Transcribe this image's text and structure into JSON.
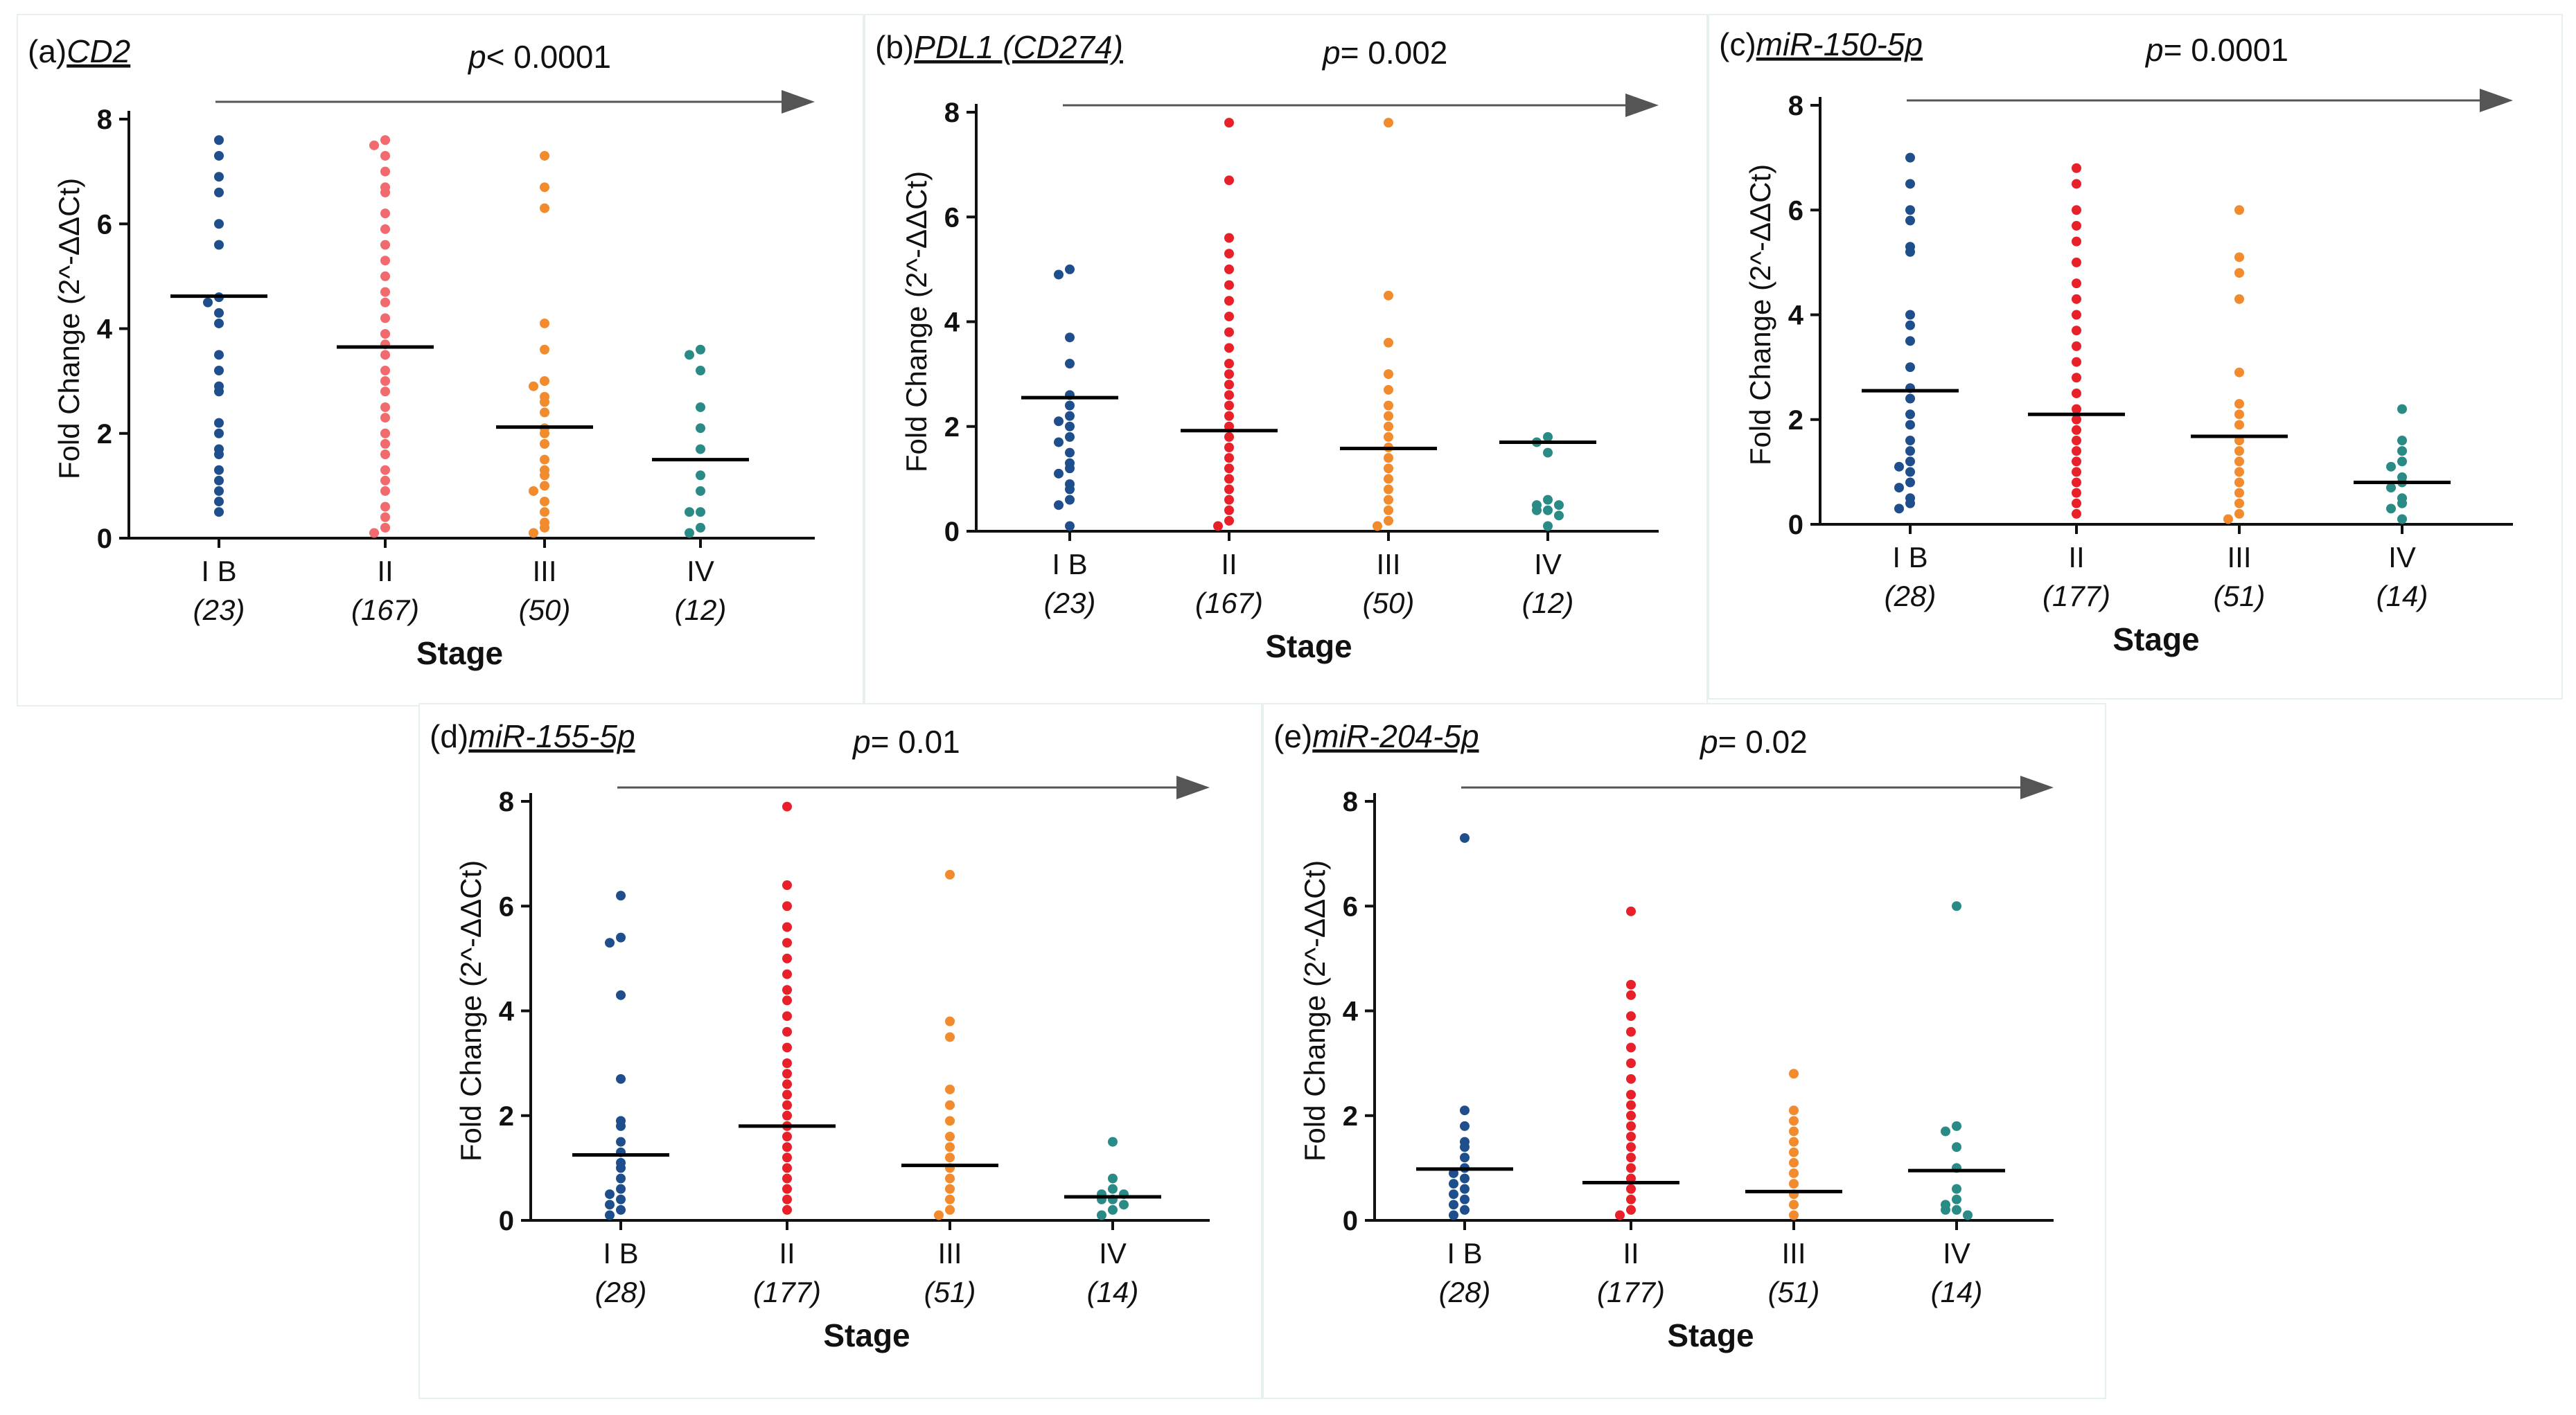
{
  "colors": {
    "IB": "#1f4e8c",
    "II": "#e8202a",
    "III": "#f28a2e",
    "IV": "#2a8a86",
    "axis": "#111111",
    "arrow": "#555555"
  },
  "chart_data": [
    {
      "type": "scatter",
      "panel": "a",
      "title_prefix": "(a)",
      "title_gene": "CD2",
      "p_label": "p",
      "p_text": "< 0.0001",
      "ylabel": "Fold Change (2^-ΔΔCt)",
      "xlabel": "Stage",
      "ylim": [
        0,
        8
      ],
      "yticks": [
        "0",
        "2",
        "4",
        "6",
        "8"
      ],
      "categories": [
        "I B",
        "II",
        "III",
        "IV"
      ],
      "counts": [
        "(23)",
        "(167)",
        "(50)",
        "(12)"
      ],
      "medians": [
        4.62,
        3.65,
        2.12,
        1.5
      ],
      "series": [
        {
          "name": "I B",
          "color": "#1f4e8c",
          "values": [
            7.6,
            7.3,
            6.9,
            6.6,
            6.0,
            5.6,
            4.6,
            4.5,
            4.3,
            4.1,
            3.5,
            3.2,
            2.9,
            2.8,
            2.2,
            2.0,
            1.7,
            1.6,
            1.3,
            1.1,
            0.9,
            0.7,
            0.5
          ]
        },
        {
          "name": "II",
          "color": "#f06a6e",
          "values": [
            7.6,
            7.5,
            7.3,
            7.0,
            6.7,
            6.6,
            6.2,
            5.9,
            5.6,
            5.3,
            5.0,
            4.7,
            4.5,
            4.2,
            3.9,
            3.7,
            3.5,
            3.2,
            3.0,
            2.8,
            2.5,
            2.3,
            2.0,
            1.8,
            1.6,
            1.3,
            1.1,
            0.9,
            0.6,
            0.4,
            0.2,
            0.1
          ]
        },
        {
          "name": "III",
          "color": "#f28a2e",
          "values": [
            7.3,
            6.7,
            6.3,
            4.1,
            3.6,
            3.0,
            2.9,
            2.7,
            2.6,
            2.4,
            2.1,
            2.0,
            1.8,
            1.5,
            1.3,
            1.2,
            1.0,
            0.9,
            0.7,
            0.5,
            0.3,
            0.2,
            0.1
          ]
        },
        {
          "name": "IV",
          "color": "#2a8a86",
          "values": [
            3.6,
            3.5,
            3.2,
            2.5,
            2.1,
            1.7,
            1.2,
            0.9,
            0.5,
            0.5,
            0.2,
            0.1
          ]
        }
      ]
    },
    {
      "type": "scatter",
      "panel": "b",
      "title_prefix": "(b)",
      "title_gene": "PDL1 (CD274)",
      "p_label": "p",
      "p_text": "= 0.002",
      "ylabel": "Fold Change (2^-ΔΔCt)",
      "xlabel": "Stage",
      "ylim": [
        0,
        8
      ],
      "yticks": [
        "0",
        "2",
        "4",
        "6",
        "8"
      ],
      "categories": [
        "I B",
        "II",
        "III",
        "IV"
      ],
      "counts": [
        "(23)",
        "(167)",
        "(50)",
        "(12)"
      ],
      "medians": [
        2.55,
        1.92,
        1.58,
        1.7
      ],
      "series": [
        {
          "name": "I B",
          "color": "#1f4e8c",
          "values": [
            5.0,
            4.9,
            3.7,
            3.2,
            2.6,
            2.4,
            2.2,
            2.1,
            2.0,
            1.8,
            1.7,
            1.5,
            1.3,
            1.2,
            1.1,
            0.9,
            0.8,
            0.6,
            0.5,
            0.1
          ]
        },
        {
          "name": "II",
          "color": "#e8202a",
          "values": [
            7.8,
            6.7,
            5.6,
            5.3,
            5.0,
            4.7,
            4.4,
            4.1,
            3.8,
            3.5,
            3.2,
            3.0,
            2.8,
            2.6,
            2.4,
            2.2,
            2.0,
            1.8,
            1.6,
            1.4,
            1.2,
            1.0,
            0.8,
            0.6,
            0.4,
            0.2,
            0.1
          ]
        },
        {
          "name": "III",
          "color": "#f28a2e",
          "values": [
            7.8,
            4.5,
            3.6,
            3.0,
            2.7,
            2.4,
            2.2,
            2.0,
            1.8,
            1.6,
            1.4,
            1.2,
            1.0,
            0.8,
            0.6,
            0.4,
            0.2,
            0.1
          ]
        },
        {
          "name": "IV",
          "color": "#2a8a86",
          "values": [
            1.8,
            1.7,
            1.5,
            0.6,
            0.5,
            0.5,
            0.4,
            0.4,
            0.3,
            0.1
          ]
        }
      ]
    },
    {
      "type": "scatter",
      "panel": "c",
      "title_prefix": "(c)",
      "title_gene": "miR-150-5p",
      "p_label": "p",
      "p_text": "= 0.0001",
      "ylabel": "Fold Change (2^-ΔΔCt)",
      "xlabel": "Stage",
      "ylim": [
        0,
        8
      ],
      "yticks": [
        "0",
        "2",
        "4",
        "6",
        "8"
      ],
      "categories": [
        "I B",
        "II",
        "III",
        "IV"
      ],
      "counts": [
        "(28)",
        "(177)",
        "(51)",
        "(14)"
      ],
      "medians": [
        2.55,
        2.1,
        1.68,
        0.8
      ],
      "series": [
        {
          "name": "I B",
          "color": "#1f4e8c",
          "values": [
            7.0,
            6.5,
            6.0,
            5.8,
            5.3,
            5.2,
            4.0,
            3.8,
            3.5,
            3.0,
            2.6,
            2.4,
            2.1,
            1.9,
            1.6,
            1.4,
            1.2,
            1.1,
            1.0,
            0.8,
            0.7,
            0.5,
            0.4,
            0.3
          ]
        },
        {
          "name": "II",
          "color": "#e8202a",
          "values": [
            6.8,
            6.5,
            6.0,
            5.7,
            5.4,
            5.0,
            4.6,
            4.3,
            4.0,
            3.7,
            3.4,
            3.1,
            2.8,
            2.5,
            2.2,
            2.0,
            1.8,
            1.6,
            1.4,
            1.2,
            1.0,
            0.8,
            0.6,
            0.4,
            0.2
          ]
        },
        {
          "name": "III",
          "color": "#f28a2e",
          "values": [
            6.0,
            5.1,
            4.8,
            4.3,
            2.9,
            2.3,
            2.1,
            1.9,
            1.6,
            1.4,
            1.2,
            1.0,
            0.8,
            0.6,
            0.4,
            0.2,
            0.1
          ]
        },
        {
          "name": "IV",
          "color": "#2a8a86",
          "values": [
            2.2,
            1.6,
            1.4,
            1.2,
            1.1,
            0.9,
            0.8,
            0.7,
            0.5,
            0.4,
            0.3,
            0.1
          ]
        }
      ]
    },
    {
      "type": "scatter",
      "panel": "d",
      "title_prefix": "(d)",
      "title_gene": "miR-155-5p",
      "p_label": "p",
      "p_text": "= 0.01",
      "ylabel": "Fold Change (2^-ΔΔCt)",
      "xlabel": "Stage",
      "ylim": [
        0,
        8
      ],
      "yticks": [
        "0",
        "2",
        "4",
        "6",
        "8"
      ],
      "categories": [
        "I B",
        "II",
        "III",
        "IV"
      ],
      "counts": [
        "(28)",
        "(177)",
        "(51)",
        "(14)"
      ],
      "medians": [
        1.25,
        1.8,
        1.05,
        0.45
      ],
      "series": [
        {
          "name": "I B",
          "color": "#1f4e8c",
          "values": [
            6.2,
            5.4,
            5.3,
            4.3,
            2.7,
            1.9,
            1.8,
            1.5,
            1.3,
            1.1,
            1.0,
            0.8,
            0.6,
            0.5,
            0.4,
            0.3,
            0.2,
            0.1
          ]
        },
        {
          "name": "II",
          "color": "#e8202a",
          "values": [
            7.9,
            6.4,
            6.0,
            5.6,
            5.3,
            5.0,
            4.7,
            4.4,
            4.2,
            3.9,
            3.6,
            3.3,
            3.0,
            2.8,
            2.6,
            2.4,
            2.2,
            2.0,
            1.8,
            1.6,
            1.4,
            1.2,
            1.0,
            0.8,
            0.6,
            0.4,
            0.2
          ]
        },
        {
          "name": "III",
          "color": "#f28a2e",
          "values": [
            6.6,
            3.8,
            3.5,
            2.5,
            2.2,
            1.9,
            1.6,
            1.4,
            1.2,
            1.0,
            0.8,
            0.6,
            0.4,
            0.2,
            0.1
          ]
        },
        {
          "name": "IV",
          "color": "#2a8a86",
          "values": [
            1.5,
            0.8,
            0.6,
            0.5,
            0.5,
            0.4,
            0.4,
            0.3,
            0.2,
            0.1
          ]
        }
      ]
    },
    {
      "type": "scatter",
      "panel": "e",
      "title_prefix": "(e)",
      "title_gene": "miR-204-5p",
      "p_label": "p",
      "p_text": "= 0.02",
      "ylabel": "Fold Change (2^-ΔΔCt)",
      "xlabel": "Stage",
      "ylim": [
        0,
        8
      ],
      "yticks": [
        "0",
        "2",
        "4",
        "6",
        "8"
      ],
      "categories": [
        "I B",
        "II",
        "III",
        "IV"
      ],
      "counts": [
        "(28)",
        "(177)",
        "(51)",
        "(14)"
      ],
      "medians": [
        0.98,
        0.72,
        0.55,
        0.95
      ],
      "series": [
        {
          "name": "I B",
          "color": "#1f4e8c",
          "values": [
            7.3,
            2.1,
            1.8,
            1.5,
            1.4,
            1.2,
            1.0,
            0.9,
            0.8,
            0.7,
            0.6,
            0.5,
            0.4,
            0.3,
            0.2,
            0.1
          ]
        },
        {
          "name": "II",
          "color": "#e8202a",
          "values": [
            5.9,
            4.5,
            4.3,
            3.9,
            3.6,
            3.3,
            3.0,
            2.7,
            2.4,
            2.2,
            2.0,
            1.8,
            1.6,
            1.4,
            1.2,
            1.0,
            0.8,
            0.6,
            0.4,
            0.2,
            0.1
          ]
        },
        {
          "name": "III",
          "color": "#f28a2e",
          "values": [
            2.8,
            2.1,
            1.9,
            1.7,
            1.5,
            1.3,
            1.1,
            0.9,
            0.7,
            0.5,
            0.3,
            0.1
          ]
        },
        {
          "name": "IV",
          "color": "#2a8a86",
          "values": [
            6.0,
            1.8,
            1.7,
            1.4,
            1.0,
            0.6,
            0.4,
            0.3,
            0.2,
            0.2,
            0.1
          ]
        }
      ]
    }
  ]
}
